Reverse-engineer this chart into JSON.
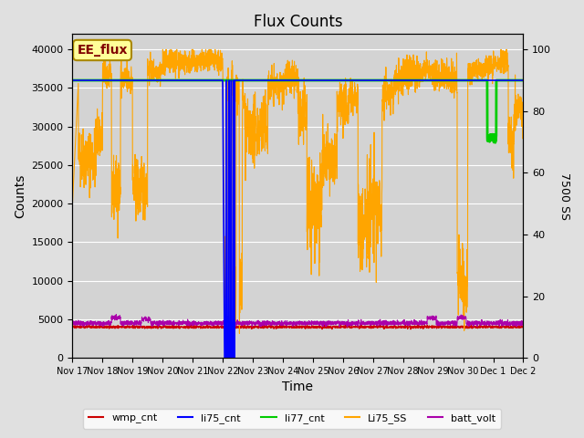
{
  "title": "Flux Counts",
  "xlabel": "Time",
  "ylabel_left": "Counts",
  "ylabel_right": "7500 SS",
  "ylim_left": [
    0,
    42000
  ],
  "ylim_right": [
    0,
    105
  ],
  "annotation_text": "EE_flux",
  "annotation_bg": "#ffff99",
  "annotation_border": "#aa8800",
  "green_line_color": "#00cc00",
  "blue_line_color": "#0000ff",
  "orange_line_color": "#ffa500",
  "purple_line_color": "#aa00aa",
  "red_line_color": "#cc0000",
  "legend_entries": [
    "wmp_cnt",
    "li75_cnt",
    "li77_cnt",
    "Li75_SS",
    "batt_volt"
  ],
  "legend_colors": [
    "#cc0000",
    "#0000ff",
    "#00cc00",
    "#ffa500",
    "#aa00aa"
  ],
  "x_tick_labels": [
    "Nov 17",
    "Nov 18",
    "Nov 19",
    "Nov 20",
    "Nov 21",
    "Nov 22",
    "Nov 23",
    "Nov 24",
    "Nov 25",
    "Nov 26",
    "Nov 27",
    "Nov 28",
    "Nov 29",
    "Nov 30",
    "Dec 1",
    "Dec 2"
  ]
}
